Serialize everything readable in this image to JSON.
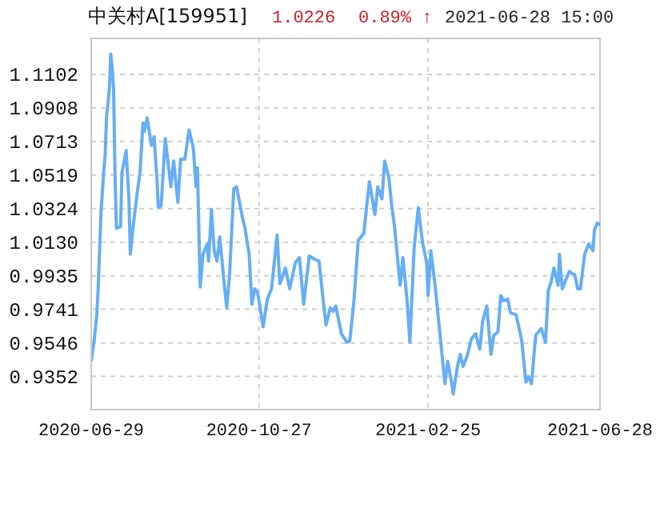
{
  "chart_data": {
    "type": "line",
    "title": "中关村A[159951]",
    "annotations": [
      "1.0226",
      "0.89% ↑",
      "2021-06-28 15:00"
    ],
    "x": [
      "2020-06-29",
      "2020-07-01",
      "2020-07-03",
      "2020-07-04",
      "2020-07-06",
      "2020-07-08",
      "2020-07-09",
      "2020-07-10",
      "2020-07-11",
      "2020-07-12",
      "2020-07-13",
      "2020-07-14",
      "2020-07-15",
      "2020-07-16",
      "2020-07-17",
      "2020-07-20",
      "2020-07-21",
      "2020-07-23",
      "2020-07-24",
      "2020-07-26",
      "2020-07-27",
      "2020-07-29",
      "2020-08-01",
      "2020-08-03",
      "2020-08-05",
      "2020-08-06",
      "2020-08-08",
      "2020-08-09",
      "2020-08-11",
      "2020-08-13",
      "2020-08-15",
      "2020-08-16",
      "2020-08-18",
      "2020-08-21",
      "2020-08-25",
      "2020-08-27",
      "2020-08-30",
      "2020-09-01",
      "2020-09-04",
      "2020-09-07",
      "2020-09-10",
      "2020-09-12",
      "2020-09-13",
      "2020-09-15",
      "2020-09-17",
      "2020-09-20",
      "2020-09-21",
      "2020-09-23",
      "2020-09-25",
      "2020-09-27",
      "2020-09-29",
      "2020-10-02",
      "2020-10-04",
      "2020-10-06",
      "2020-10-09",
      "2020-10-11",
      "2020-10-15",
      "2020-10-17",
      "2020-10-20",
      "2020-10-22",
      "2020-10-24",
      "2020-10-26",
      "2020-10-30",
      "2020-11-02",
      "2020-11-05",
      "2020-11-09",
      "2020-11-11",
      "2020-11-15",
      "2020-11-18",
      "2020-11-22",
      "2020-11-25",
      "2020-11-28",
      "2020-12-02",
      "2020-12-06",
      "2020-12-09",
      "2020-12-12",
      "2020-12-14",
      "2020-12-17",
      "2020-12-19",
      "2020-12-21",
      "2020-12-23",
      "2020-12-25",
      "2020-12-29",
      "2020-12-31",
      "2021-01-03",
      "2021-01-06",
      "2021-01-10",
      "2021-01-14",
      "2021-01-18",
      "2021-01-20",
      "2021-01-23",
      "2021-01-25",
      "2021-01-28",
      "2021-01-30",
      "2021-02-01",
      "2021-02-05",
      "2021-02-07",
      "2021-02-10",
      "2021-02-12",
      "2021-02-15",
      "2021-02-18",
      "2021-02-21",
      "2021-02-24",
      "2021-02-25",
      "2021-02-27",
      "2021-03-02",
      "2021-03-06",
      "2021-03-09",
      "2021-03-11",
      "2021-03-14",
      "2021-03-15",
      "2021-03-18",
      "2021-03-20",
      "2021-03-22",
      "2021-03-25",
      "2021-03-28",
      "2021-03-31",
      "2021-04-03",
      "2021-04-05",
      "2021-04-08",
      "2021-04-11",
      "2021-04-13",
      "2021-04-16",
      "2021-04-18",
      "2021-04-20",
      "2021-04-23",
      "2021-04-25",
      "2021-04-29",
      "2021-05-03",
      "2021-05-06",
      "2021-05-08",
      "2021-05-10",
      "2021-05-13",
      "2021-05-17",
      "2021-05-20",
      "2021-05-22",
      "2021-05-24",
      "2021-05-26",
      "2021-05-29",
      "2021-05-30",
      "2021-06-01",
      "2021-06-03",
      "2021-06-06",
      "2021-06-10",
      "2021-06-12",
      "2021-06-14",
      "2021-06-17",
      "2021-06-20",
      "2021-06-23",
      "2021-06-24",
      "2021-06-26",
      "2021-06-28"
    ],
    "series": [
      {
        "color": "#66aef5",
        "values": [
          0.944,
          0.955,
          0.971,
          0.986,
          1.03,
          1.054,
          1.064,
          1.086,
          1.093,
          1.102,
          1.122,
          1.114,
          1.102,
          1.054,
          1.021,
          1.022,
          1.053,
          1.062,
          1.066,
          1.038,
          1.006,
          1.022,
          1.042,
          1.054,
          1.082,
          1.077,
          1.085,
          1.08,
          1.069,
          1.074,
          1.05,
          1.033,
          1.034,
          1.073,
          1.045,
          1.06,
          1.036,
          1.061,
          1.061,
          1.078,
          1.068,
          1.045,
          1.056,
          0.987,
          1.006,
          1.012,
          1.002,
          1.032,
          1.008,
          1.002,
          1.016,
          0.99,
          0.975,
          0.994,
          1.044,
          1.045,
          1.028,
          1.021,
          1.006,
          0.977,
          0.986,
          0.984,
          0.964,
          0.98,
          0.986,
          1.017,
          0.989,
          0.998,
          0.986,
          1.001,
          1.004,
          0.977,
          1.005,
          1.003,
          1.002,
          0.979,
          0.965,
          0.975,
          0.973,
          0.976,
          0.968,
          0.96,
          0.955,
          0.956,
          0.979,
          1.014,
          1.018,
          1.048,
          1.029,
          1.045,
          1.038,
          1.06,
          1.05,
          1.034,
          1.022,
          0.988,
          1.004,
          0.979,
          0.955,
          1.009,
          1.033,
          1.013,
          1.001,
          0.982,
          1.008,
          0.988,
          0.956,
          0.931,
          0.944,
          0.931,
          0.925,
          0.941,
          0.948,
          0.941,
          0.947,
          0.957,
          0.96,
          0.951,
          0.967,
          0.976,
          0.948,
          0.959,
          0.961,
          0.982,
          0.979,
          0.98,
          0.972,
          0.971,
          0.956,
          0.932,
          0.935,
          0.931,
          0.959,
          0.963,
          0.955,
          0.985,
          0.99,
          0.998,
          0.988,
          1.006,
          0.986,
          0.99,
          0.996,
          0.994,
          0.986,
          0.986,
          1.006,
          1.012,
          1.008,
          1.02,
          1.024,
          1.023
        ]
      }
    ],
    "xlim": [
      "2020-06-29",
      "2021-06-28"
    ],
    "xticks": [
      "2020-06-29",
      "2020-10-27",
      "2021-02-25",
      "2021-06-28"
    ],
    "ylim": [
      0.916,
      1.131
    ],
    "yticks": [
      0.9352,
      0.9546,
      0.9741,
      0.9935,
      {
        "value": 1.013,
        "label": "1.0130"
      },
      1.0324,
      1.0519,
      1.0713,
      1.0908,
      1.1102
    ],
    "grid": true,
    "marker": "none",
    "line_style": "solid"
  }
}
